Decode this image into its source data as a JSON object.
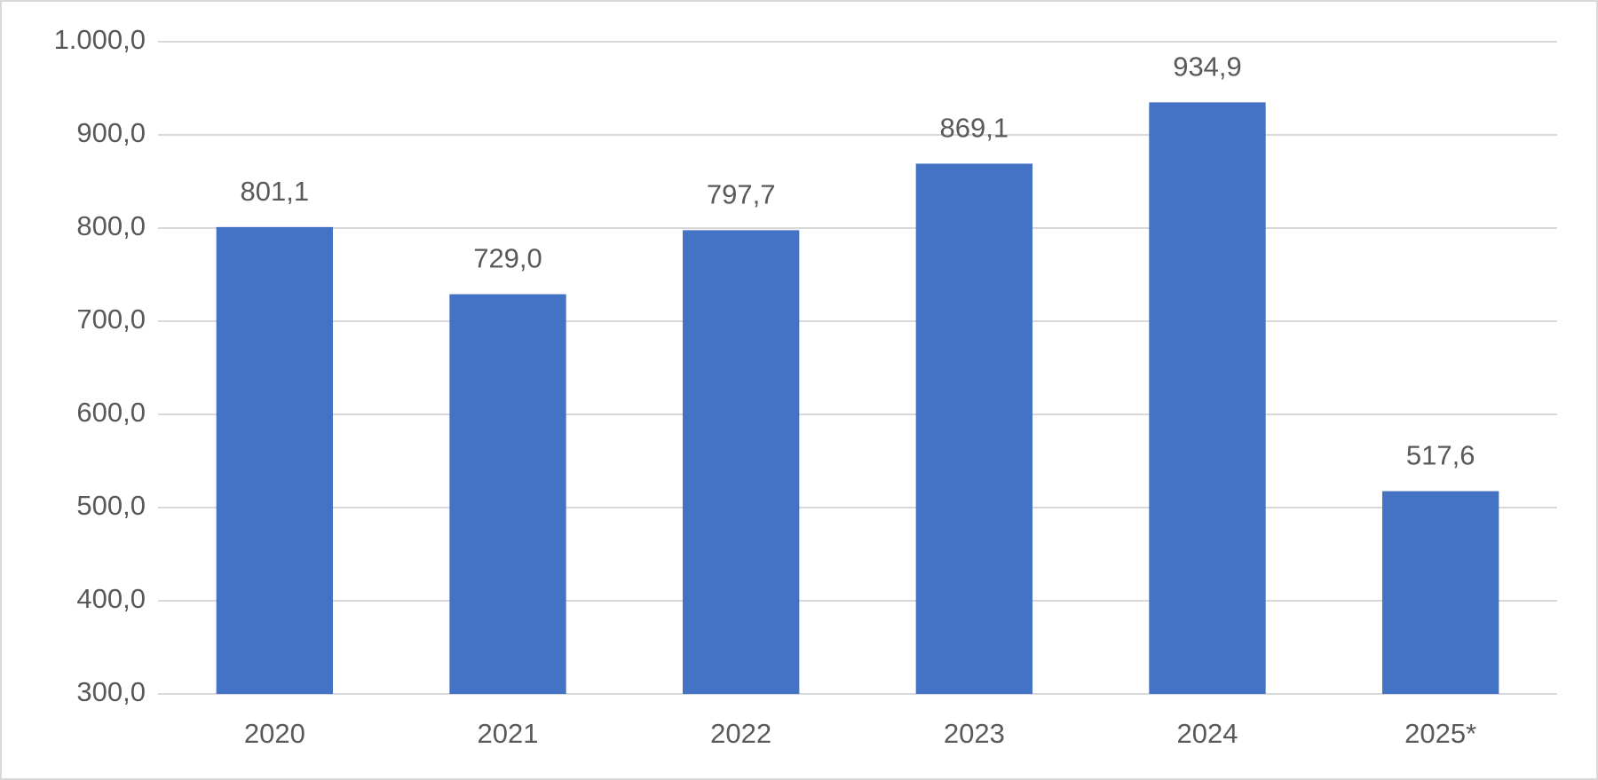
{
  "chart_data": {
    "type": "bar",
    "categories": [
      "2020",
      "2021",
      "2022",
      "2023",
      "2024",
      "2025*"
    ],
    "values": [
      801.1,
      729.0,
      797.7,
      869.1,
      934.9,
      517.6
    ],
    "value_labels": [
      "801,1",
      "729,0",
      "797,7",
      "869,1",
      "934,9",
      "517,6"
    ],
    "color": "#4472c4",
    "ylim": [
      300,
      1000
    ],
    "yticks": [
      {
        "value": 300,
        "label": "300,0"
      },
      {
        "value": 400,
        "label": "400,0"
      },
      {
        "value": 500,
        "label": "500,0"
      },
      {
        "value": 600,
        "label": "600,0"
      },
      {
        "value": 700,
        "label": "700,0"
      },
      {
        "value": 800,
        "label": "800,0"
      },
      {
        "value": 900,
        "label": "900,0"
      },
      {
        "value": 1000,
        "label": "1.000,0"
      }
    ],
    "grid": true
  }
}
